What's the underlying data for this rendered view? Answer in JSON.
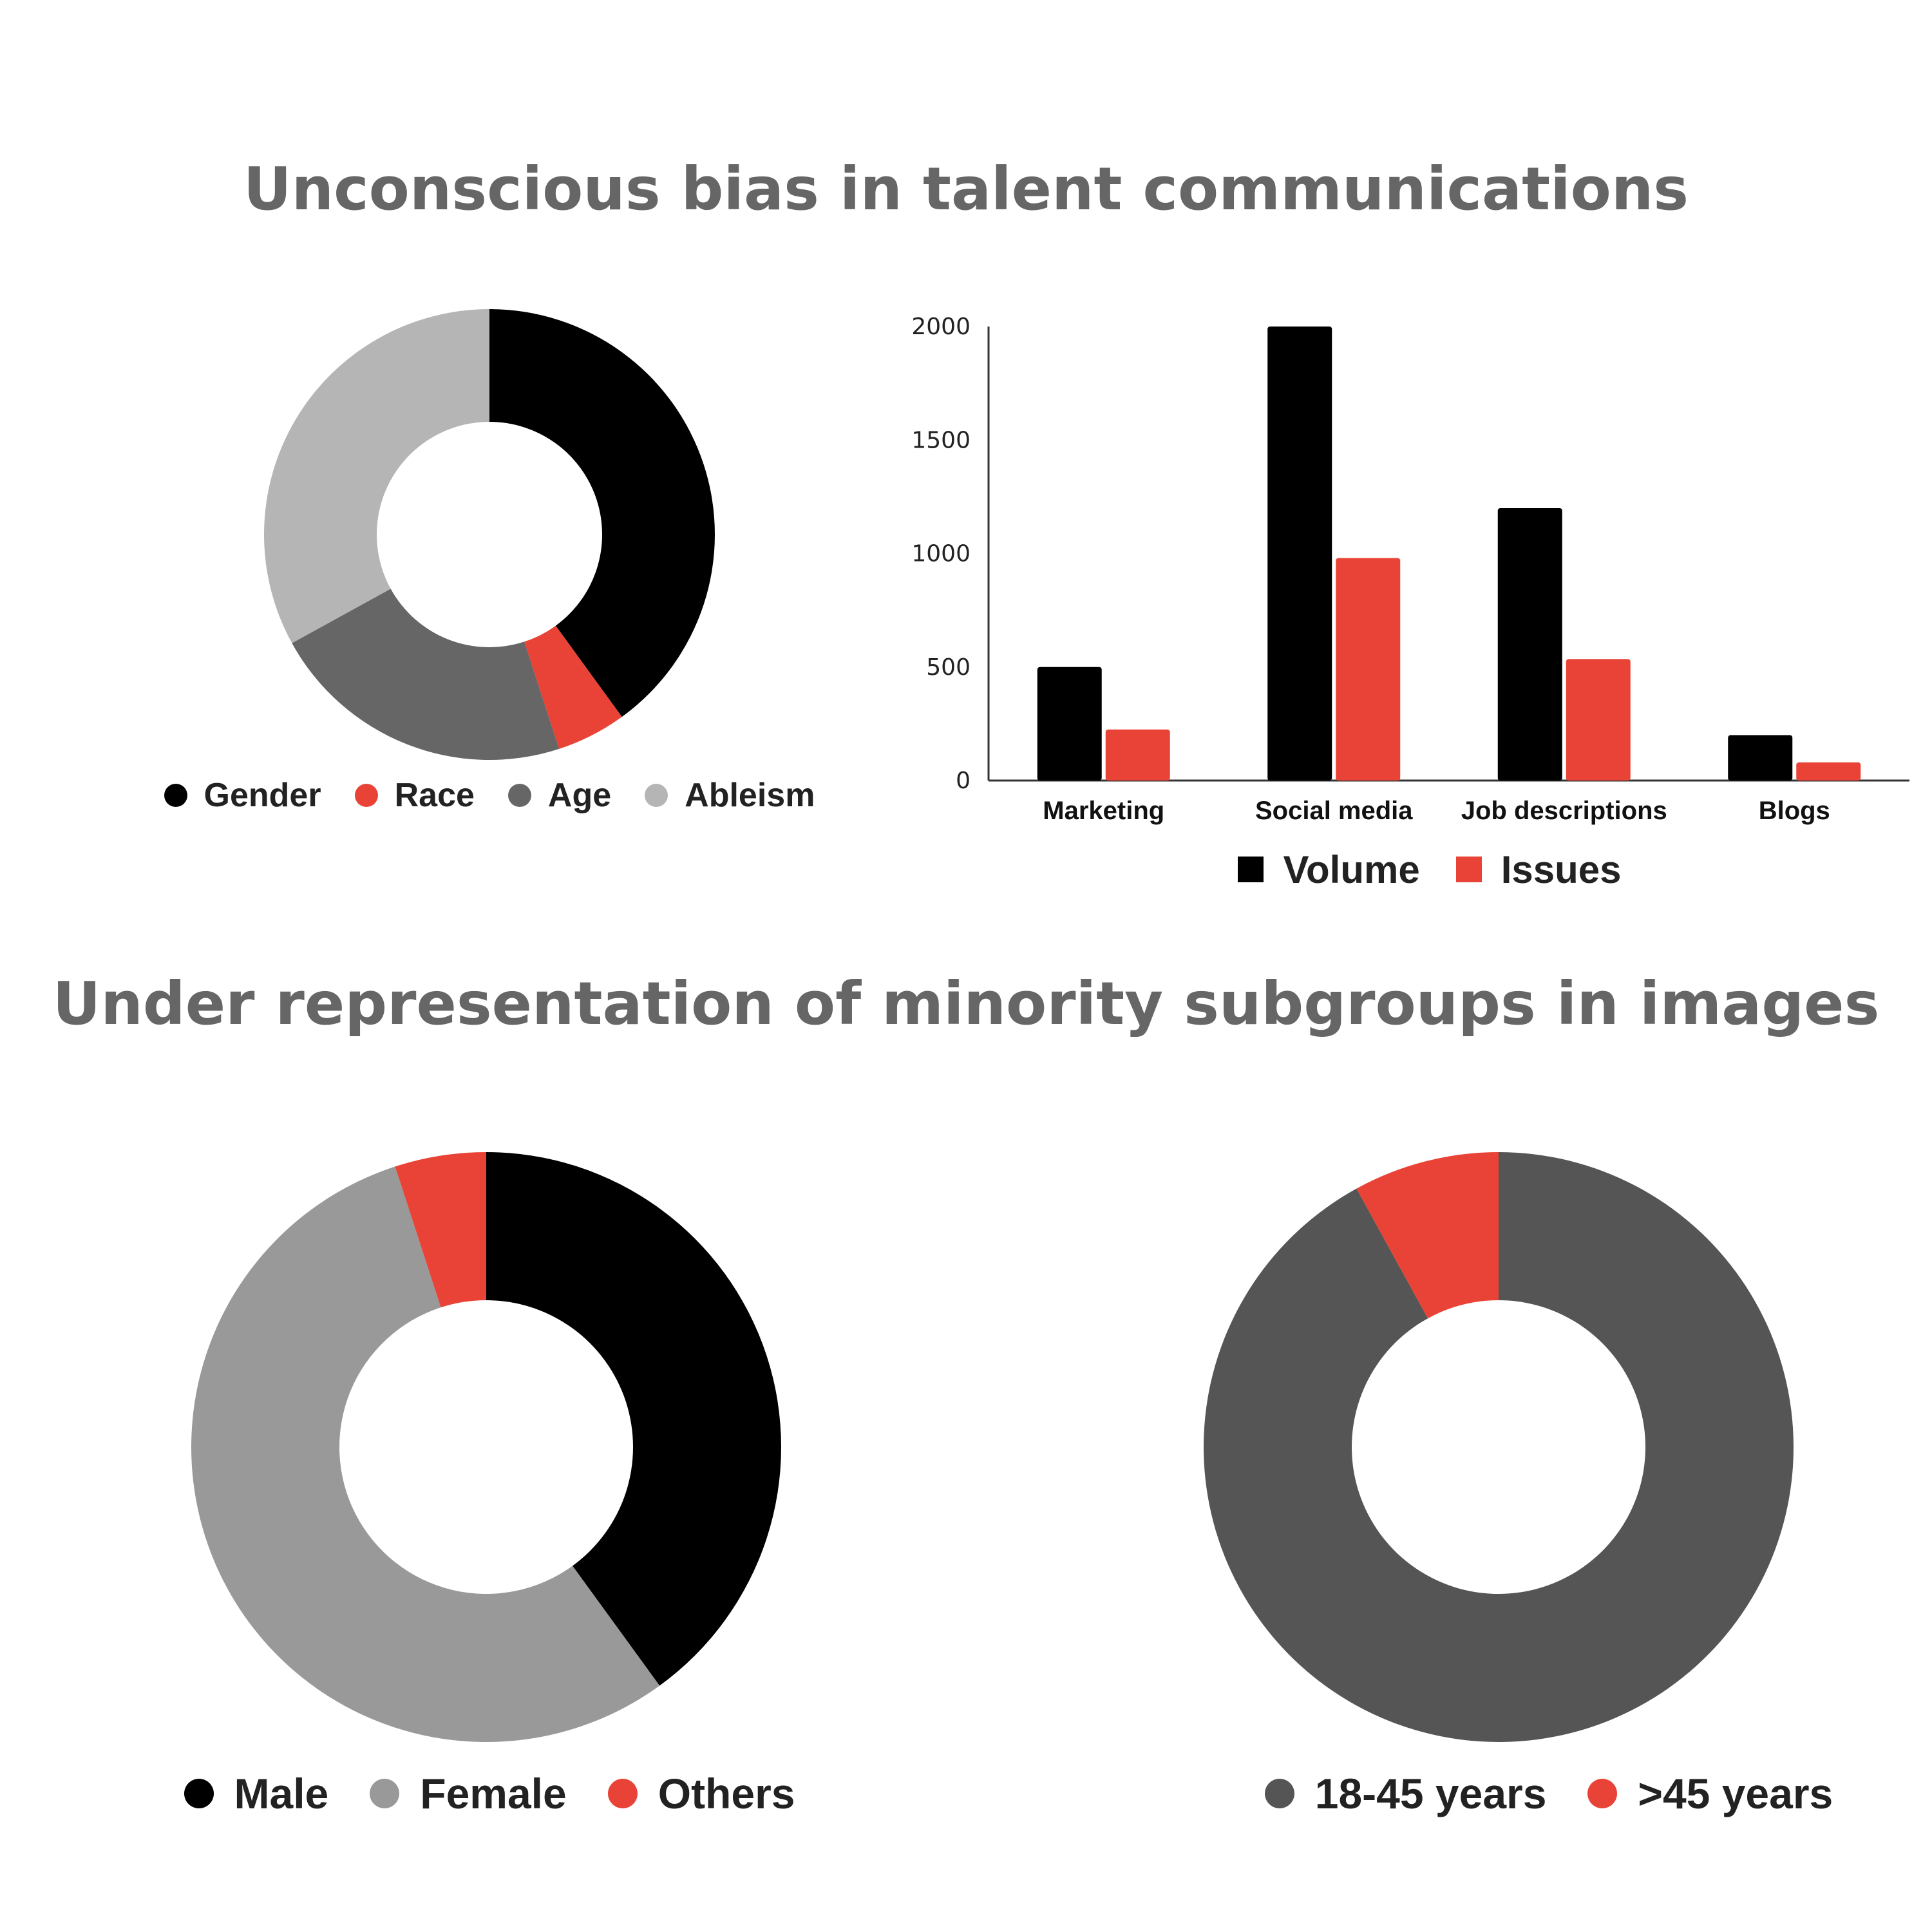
{
  "headings": {
    "top": "Unconscious bias in talent communications",
    "bottom": "Under representation of minority subgroups in images"
  },
  "chart_data": [
    {
      "type": "pie",
      "donut": true,
      "title": "",
      "slices": [
        {
          "label": "Gender",
          "value": 40,
          "color": "#000000"
        },
        {
          "label": "Race",
          "value": 5,
          "color": "#e84336"
        },
        {
          "label": "Age",
          "value": 22,
          "color": "#666666"
        },
        {
          "label": "Ableism",
          "value": 33,
          "color": "#b5b5b5"
        }
      ],
      "legend": "bottom"
    },
    {
      "type": "bar",
      "title": "",
      "xlabel": "",
      "ylabel": "",
      "categories": [
        "Marketing",
        "Social media",
        "Job descriptions",
        "Blogs"
      ],
      "series": [
        {
          "name": "Volume",
          "values": [
            500,
            2000,
            1200,
            200
          ],
          "color": "#000000"
        },
        {
          "name": "Issues",
          "values": [
            225,
            980,
            535,
            80
          ],
          "color": "#e84336"
        }
      ],
      "ylim": [
        0,
        2000
      ],
      "yticks": [
        "0",
        "500",
        "1000",
        "1500",
        "2000"
      ],
      "grid": false,
      "legend": "bottom"
    },
    {
      "type": "pie",
      "donut": true,
      "title": "",
      "slices": [
        {
          "label": "Male",
          "value": 40,
          "color": "#000000"
        },
        {
          "label": "Female",
          "value": 55,
          "color": "#999999"
        },
        {
          "label": "Others",
          "value": 5,
          "color": "#e84336"
        }
      ],
      "legend": "bottom"
    },
    {
      "type": "pie",
      "donut": true,
      "title": "",
      "slices": [
        {
          "label": "18-45 years",
          "value": 92,
          "color": "#555555"
        },
        {
          "label": ">45 years",
          "value": 8,
          "color": "#e84336"
        }
      ],
      "legend": "bottom"
    }
  ]
}
